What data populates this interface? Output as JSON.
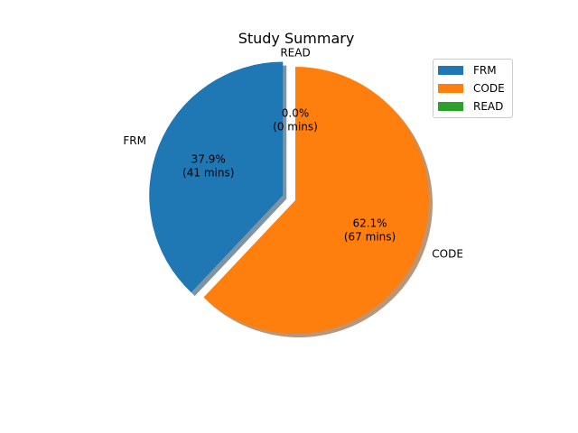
{
  "chart_data": {
    "type": "pie",
    "title": "Study Summary",
    "slices": [
      {
        "label": "FRM",
        "minutes": 41,
        "percent_label": "37.9%",
        "minutes_label": "(41 mins)",
        "color": "#1f77b4",
        "exploded": true
      },
      {
        "label": "CODE",
        "minutes": 67,
        "percent_label": "62.1%",
        "minutes_label": "(67 mins)",
        "color": "#ff7f0e",
        "exploded": false
      },
      {
        "label": "READ",
        "minutes": 0,
        "percent_label": "0.0%",
        "minutes_label": "(0 mins)",
        "color": "#2ca02c",
        "exploded": false
      }
    ],
    "start_angle_deg": 90,
    "direction": "counterclockwise",
    "shadow": true,
    "legend": {
      "placement": "top-right",
      "entries": [
        "FRM",
        "CODE",
        "READ"
      ]
    }
  }
}
